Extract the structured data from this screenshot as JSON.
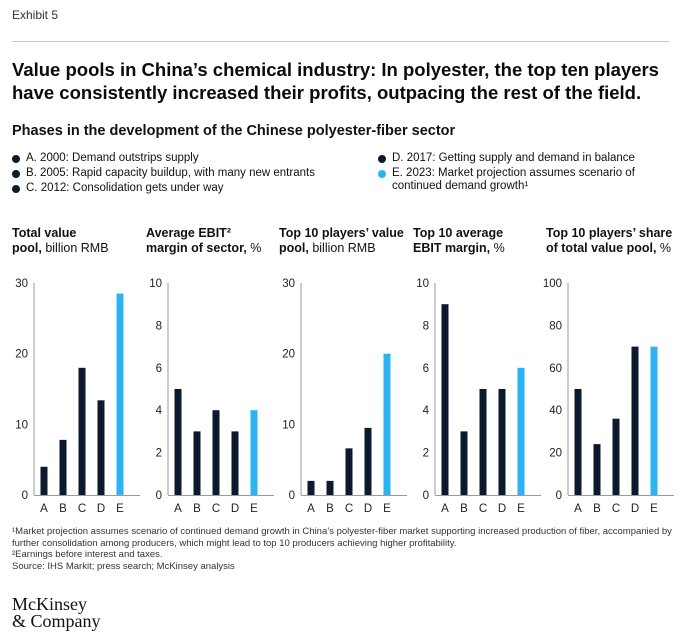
{
  "exhibit": "Exhibit 5",
  "title": "Value pools in China’s chemical industry: In polyester, the top ten players have consistently increased their profits, outpacing the rest of the field.",
  "subtitle": "Phases in the development of the Chinese polyester-fiber sector",
  "colors": {
    "dark": "#0b1a2e",
    "accent": "#2bb3f3",
    "axis": "#9a9a9a"
  },
  "legend": [
    {
      "text": "A. 2000: Demand outstrips supply",
      "color": "#0b1a2e"
    },
    {
      "text": "B. 2005: Rapid capacity buildup, with many new entrants",
      "color": "#0b1a2e"
    },
    {
      "text": "C. 2012: Consolidation gets under way",
      "color": "#0b1a2e"
    },
    {
      "text": "D. 2017: Getting supply and demand in balance",
      "color": "#0b1a2e"
    },
    {
      "text": "E. 2023: Market projection assumes scenario of",
      "text2": "continued demand growth¹",
      "color": "#2bb3f3"
    }
  ],
  "panels": [
    {
      "title_bold": "Total value",
      "title_line2_bold": "pool,",
      "title_line2_rest": " billion RMB"
    },
    {
      "title_bold": "Average EBIT²",
      "title_line2_bold": "margin of sector,",
      "title_line2_rest": " %"
    },
    {
      "title_bold": "Top 10 players’ value",
      "title_line2_bold": "pool,",
      "title_line2_rest": " billion RMB"
    },
    {
      "title_bold": "Top 10 average",
      "title_line2_bold": "EBIT margin,",
      "title_line2_rest": " %"
    },
    {
      "title_bold": "Top 10 players’ share",
      "title_line2_bold": "of total value pool,",
      "title_line2_rest": " %"
    }
  ],
  "chart_data": [
    {
      "type": "bar",
      "categories": [
        "A",
        "B",
        "C",
        "D",
        "E"
      ],
      "values": [
        4,
        7.8,
        18,
        13.4,
        28.5
      ],
      "ylim": [
        0,
        30
      ],
      "yticks": [
        "0",
        "10",
        "20",
        "30"
      ],
      "title": "Total value pool, billion RMB",
      "highlight_index": 4
    },
    {
      "type": "bar",
      "categories": [
        "A",
        "B",
        "C",
        "D",
        "E"
      ],
      "values": [
        5,
        3,
        4,
        3,
        4
      ],
      "ylim": [
        0,
        10
      ],
      "yticks": [
        "0",
        "2",
        "4",
        "6",
        "8",
        "10"
      ],
      "title": "Average EBIT² margin of sector, %",
      "highlight_index": 4
    },
    {
      "type": "bar",
      "categories": [
        "A",
        "B",
        "C",
        "D",
        "E"
      ],
      "values": [
        2,
        2,
        6.6,
        9.5,
        20
      ],
      "ylim": [
        0,
        30
      ],
      "yticks": [
        "0",
        "10",
        "20",
        "30"
      ],
      "title": "Top 10 players’ value pool, billion RMB",
      "highlight_index": 4
    },
    {
      "type": "bar",
      "categories": [
        "A",
        "B",
        "C",
        "D",
        "E"
      ],
      "values": [
        9,
        3,
        5,
        5,
        6
      ],
      "ylim": [
        0,
        10
      ],
      "yticks": [
        "0",
        "2",
        "4",
        "6",
        "8",
        "10"
      ],
      "title": "Top 10 average EBIT margin, %",
      "highlight_index": 4
    },
    {
      "type": "bar",
      "categories": [
        "A",
        "B",
        "C",
        "D",
        "E"
      ],
      "values": [
        50,
        24,
        36,
        70,
        70
      ],
      "ylim": [
        0,
        100
      ],
      "yticks": [
        "0",
        "20",
        "40",
        "60",
        "80",
        "100"
      ],
      "title": "Top 10 players’ share of total value pool, %",
      "highlight_index": 4
    }
  ],
  "footnotes": [
    "¹Market projection assumes scenario of continued demand growth in China’s polyester-fiber market supporting increased production of fiber, accompanied by further consolidation among producers, which might lead to top 10 producers achieving higher profitability.",
    "²Earnings before interest and taxes.",
    "Source: IHS Markit; press search; McKinsey analysis"
  ],
  "logo": {
    "line1": "McKinsey",
    "line2": "& Company"
  }
}
